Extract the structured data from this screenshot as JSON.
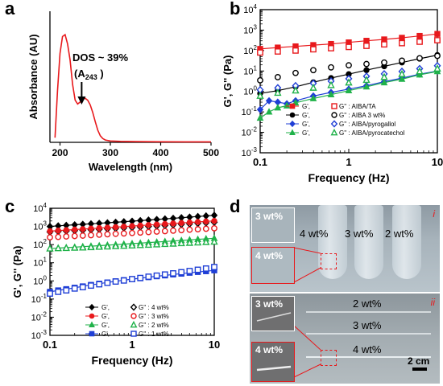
{
  "panel_labels": {
    "a": "a",
    "b": "b",
    "c": "c",
    "d": "d"
  },
  "panel_a": {
    "chart_data": {
      "type": "line",
      "xlabel": "Wavelength (nm)",
      "ylabel": "Absorbance (AU)",
      "xlim": [
        180,
        500
      ],
      "xticks": [
        200,
        300,
        400,
        500
      ],
      "x": [
        190,
        195,
        200,
        205,
        210,
        215,
        220,
        225,
        230,
        235,
        240,
        245,
        250,
        255,
        260,
        265,
        270,
        275,
        280,
        285,
        290,
        300,
        320,
        350,
        400,
        450,
        500
      ],
      "y": [
        0.05,
        0.55,
        0.95,
        1.13,
        1.15,
        1.05,
        0.88,
        0.62,
        0.45,
        0.41,
        0.43,
        0.46,
        0.47,
        0.45,
        0.4,
        0.32,
        0.22,
        0.13,
        0.07,
        0.04,
        0.025,
        0.015,
        0.01,
        0.008,
        0.006,
        0.005,
        0.005
      ],
      "color": "#e8191c",
      "annotation": {
        "line1": "DOS ~ 39%",
        "line2_pre": "(A",
        "line2_sub": "243",
        "line2_post": " )",
        "arrow_x": 243
      }
    }
  },
  "panel_b": {
    "chart_data": {
      "type": "scatter",
      "scale": "log-log",
      "xlabel": "Frequency (Hz)",
      "ylabel": "G', G'' (Pa)",
      "xlim": [
        0.1,
        10
      ],
      "ylim": [
        0.001,
        10000
      ],
      "xticks": [
        {
          "v": 0.1,
          "t": "0.1"
        },
        {
          "v": 1,
          "t": "1"
        },
        {
          "v": 10,
          "t": "10"
        }
      ],
      "yticks": [
        {
          "v": 0.001,
          "m": "10",
          "e": "-3"
        },
        {
          "v": 0.01,
          "m": "10",
          "e": "-2"
        },
        {
          "v": 0.1,
          "m": "10",
          "e": "-1"
        },
        {
          "v": 1,
          "m": "10",
          "e": "0"
        },
        {
          "v": 10,
          "m": "10",
          "e": "1"
        },
        {
          "v": 100,
          "m": "10",
          "e": "2"
        },
        {
          "v": 1000,
          "m": "10",
          "e": "3"
        },
        {
          "v": 10000,
          "m": "10",
          "e": "4"
        }
      ],
      "legend_pos": "lower-left",
      "legend": [
        {
          "g1": "G',",
          "g2": "G'' : AIBA/TA",
          "color": "#e8191c",
          "marker": "square"
        },
        {
          "g1": "G',",
          "g2": "G'' : AIBA 3 wt%",
          "color": "#000000",
          "marker": "circle"
        },
        {
          "g1": "G',",
          "g2": "G'' : AIBA/pyrogallol",
          "color": "#1f3fd6",
          "marker": "diamond"
        },
        {
          "g1": "G',",
          "g2": "G'' : AIBA/pyrocatechol",
          "color": "#20b24a",
          "marker": "triangle"
        }
      ],
      "series": [
        {
          "color": "#e8191c",
          "marker": "square",
          "filled": true,
          "x": [
            0.1,
            0.158,
            0.251,
            0.398,
            0.631,
            1,
            1.585,
            2.512,
            3.981,
            6.31,
            10
          ],
          "y": [
            120,
            140,
            160,
            185,
            210,
            250,
            300,
            350,
            420,
            520,
            650
          ]
        },
        {
          "color": "#e8191c",
          "marker": "square",
          "filled": false,
          "x": [
            0.1,
            0.158,
            0.251,
            0.398,
            0.631,
            1,
            1.585,
            2.512,
            3.981,
            6.31,
            10
          ],
          "y": [
            80,
            90,
            100,
            115,
            130,
            150,
            170,
            200,
            230,
            270,
            320
          ]
        },
        {
          "color": "#000000",
          "marker": "circle",
          "filled": true,
          "x": [
            0.1,
            0.158,
            0.251,
            0.398,
            0.631,
            1,
            1.585,
            2.512,
            3.981,
            6.31,
            10
          ],
          "y": [
            0.8,
            1.1,
            1.7,
            2.8,
            4.5,
            7,
            11,
            17,
            26,
            40,
            60
          ]
        },
        {
          "color": "#000000",
          "marker": "circle",
          "filled": false,
          "x": [
            0.1,
            0.158,
            0.251,
            0.398,
            0.631,
            1,
            1.585,
            2.512,
            3.981,
            6.31,
            10
          ],
          "y": [
            3.5,
            5,
            8,
            11,
            15,
            19,
            22,
            26,
            32,
            42,
            55
          ]
        },
        {
          "color": "#1f3fd6",
          "marker": "diamond",
          "filled": true,
          "x": [
            0.1,
            0.126,
            0.158,
            0.2,
            0.251,
            0.398,
            0.631,
            1,
            1.585,
            2.512,
            3.981,
            6.31,
            10
          ],
          "y": [
            0.13,
            0.35,
            0.3,
            0.25,
            0.35,
            0.6,
            0.9,
            1.3,
            1.9,
            3,
            4.5,
            7,
            10
          ]
        },
        {
          "color": "#1f3fd6",
          "marker": "diamond",
          "filled": false,
          "x": [
            0.1,
            0.158,
            0.251,
            0.398,
            0.631,
            1,
            1.585,
            2.512,
            3.981,
            6.31,
            10
          ],
          "y": [
            1.2,
            1.5,
            1.9,
            2.5,
            3.2,
            4.2,
            5.5,
            7.2,
            9.5,
            13,
            18
          ]
        },
        {
          "color": "#20b24a",
          "marker": "triangle",
          "filled": true,
          "x": [
            0.1,
            0.126,
            0.158,
            0.2,
            0.251,
            0.398,
            0.631,
            1,
            1.585,
            2.512,
            3.981,
            6.31,
            10
          ],
          "y": [
            0.05,
            0.1,
            0.16,
            0.2,
            0.28,
            0.45,
            0.7,
            1.1,
            1.7,
            2.7,
            4,
            6.5,
            9.5
          ]
        },
        {
          "color": "#20b24a",
          "marker": "triangle",
          "filled": false,
          "x": [
            0.1,
            0.158,
            0.251,
            0.398,
            0.631,
            1,
            1.585,
            2.512,
            3.981,
            6.31,
            10
          ],
          "y": [
            0.6,
            0.85,
            1.1,
            1.5,
            2,
            2.7,
            3.6,
            5,
            7,
            9.5,
            13
          ]
        }
      ]
    }
  },
  "panel_c": {
    "chart_data": {
      "type": "scatter",
      "scale": "log-log",
      "xlabel": "Frequency (Hz)",
      "ylabel": "G', G'' (Pa)",
      "xlim": [
        0.1,
        10
      ],
      "ylim": [
        0.001,
        10000
      ],
      "xticks": [
        {
          "v": 0.1,
          "t": "0.1"
        },
        {
          "v": 1,
          "t": "1"
        },
        {
          "v": 10,
          "t": "10"
        }
      ],
      "yticks": [
        {
          "v": 0.001,
          "m": "10",
          "e": "-3"
        },
        {
          "v": 0.01,
          "m": "10",
          "e": "-2"
        },
        {
          "v": 0.1,
          "m": "10",
          "e": "-1"
        },
        {
          "v": 1,
          "m": "10",
          "e": "0"
        },
        {
          "v": 10,
          "m": "10",
          "e": "1"
        },
        {
          "v": 100,
          "m": "10",
          "e": "2"
        },
        {
          "v": 1000,
          "m": "10",
          "e": "3"
        },
        {
          "v": 10000,
          "m": "10",
          "e": "4"
        }
      ],
      "legend_pos": "lower-right",
      "legend": [
        {
          "g1": "G',",
          "g2": "G'' : 4 wt%",
          "color": "#000000",
          "marker": "diamond"
        },
        {
          "g1": "G',",
          "g2": "G'' : 3 wt%",
          "color": "#e8191c",
          "marker": "circle"
        },
        {
          "g1": "G',",
          "g2": "G'' : 2 wt%",
          "color": "#20b24a",
          "marker": "triangle"
        },
        {
          "g1": "G',",
          "g2": "G'' : 1 wt%",
          "color": "#1f3fd6",
          "marker": "square"
        }
      ],
      "series": [
        {
          "color": "#000000",
          "marker": "diamond",
          "filled": true,
          "x": [
            0.1,
            0.126,
            0.158,
            0.2,
            0.251,
            0.316,
            0.398,
            0.501,
            0.631,
            0.794,
            1,
            1.259,
            1.585,
            1.995,
            2.512,
            3.162,
            3.981,
            5.012,
            6.31,
            7.943,
            10
          ],
          "y": [
            1000,
            1080,
            1150,
            1230,
            1310,
            1400,
            1490,
            1590,
            1700,
            1820,
            1950,
            2100,
            2250,
            2420,
            2600,
            2800,
            3020,
            3260,
            3520,
            3800,
            4100
          ]
        },
        {
          "color": "#000000",
          "marker": "diamond",
          "filled": false,
          "x": [
            0.1,
            0.126,
            0.158,
            0.2,
            0.251,
            0.316,
            0.398,
            0.501,
            0.631,
            0.794,
            1,
            1.259,
            1.585,
            1.995,
            2.512,
            3.162,
            3.981,
            5.012,
            6.31,
            7.943,
            10
          ],
          "y": [
            500,
            530,
            560,
            590,
            620,
            660,
            700,
            740,
            790,
            840,
            890,
            950,
            1010,
            1080,
            1150,
            1230,
            1310,
            1400,
            1500,
            1600,
            1720
          ]
        },
        {
          "color": "#e8191c",
          "marker": "circle",
          "filled": true,
          "x": [
            0.1,
            0.126,
            0.158,
            0.2,
            0.251,
            0.316,
            0.398,
            0.501,
            0.631,
            0.794,
            1,
            1.259,
            1.585,
            1.995,
            2.512,
            3.162,
            3.981,
            5.012,
            6.31,
            7.943,
            10
          ],
          "y": [
            550,
            590,
            630,
            670,
            710,
            760,
            810,
            860,
            920,
            980,
            1050,
            1120,
            1200,
            1280,
            1370,
            1460,
            1560,
            1660,
            1770,
            1890,
            2020
          ]
        },
        {
          "color": "#e8191c",
          "marker": "circle",
          "filled": false,
          "x": [
            0.1,
            0.126,
            0.158,
            0.2,
            0.251,
            0.316,
            0.398,
            0.501,
            0.631,
            0.794,
            1,
            1.259,
            1.585,
            1.995,
            2.512,
            3.162,
            3.981,
            5.012,
            6.31,
            7.943,
            10
          ],
          "y": [
            250,
            265,
            280,
            295,
            310,
            330,
            350,
            370,
            390,
            410,
            435,
            460,
            490,
            520,
            550,
            585,
            620,
            660,
            700,
            745,
            790
          ]
        },
        {
          "color": "#20b24a",
          "marker": "triangle",
          "filled": true,
          "x": [
            0.1,
            0.126,
            0.158,
            0.2,
            0.251,
            0.316,
            0.398,
            0.501,
            0.631,
            0.794,
            1,
            1.259,
            1.585,
            1.995,
            2.512,
            3.162,
            3.981,
            5.012,
            6.31,
            7.943,
            10
          ],
          "y": [
            60,
            64,
            68,
            72,
            77,
            82,
            87,
            93,
            99,
            106,
            113,
            121,
            129,
            138,
            148,
            158,
            169,
            181,
            194,
            208,
            222
          ]
        },
        {
          "color": "#20b24a",
          "marker": "triangle",
          "filled": false,
          "x": [
            0.1,
            0.126,
            0.158,
            0.2,
            0.251,
            0.316,
            0.398,
            0.501,
            0.631,
            0.794,
            1,
            1.259,
            1.585,
            1.995,
            2.512,
            3.162,
            3.981,
            5.012,
            6.31,
            7.943,
            10
          ],
          "y": [
            60,
            62,
            64,
            66,
            68,
            71,
            74,
            77,
            80,
            84,
            88,
            92,
            96,
            101,
            106,
            111,
            117,
            123,
            129,
            136,
            143
          ]
        },
        {
          "color": "#1f3fd6",
          "marker": "square",
          "filled": true,
          "x": [
            0.1,
            0.126,
            0.158,
            0.2,
            0.251,
            0.316,
            0.398,
            0.501,
            0.631,
            0.794,
            1,
            1.259,
            1.585,
            1.995,
            2.512,
            3.162,
            3.981,
            5.012,
            6.31,
            7.943,
            10
          ],
          "y": [
            0.25,
            0.3,
            0.35,
            0.42,
            0.5,
            0.6,
            0.7,
            0.82,
            0.95,
            1.1,
            1.25,
            1.4,
            1.6,
            1.8,
            2.0,
            2.25,
            2.5,
            2.8,
            3.1,
            3.4,
            3.8
          ]
        },
        {
          "color": "#1f3fd6",
          "marker": "square",
          "filled": false,
          "x": [
            0.1,
            0.126,
            0.158,
            0.2,
            0.251,
            0.316,
            0.398,
            0.501,
            0.631,
            0.794,
            1,
            1.259,
            1.585,
            1.995,
            2.512,
            3.162,
            3.981,
            5.012,
            6.31,
            7.943,
            10
          ],
          "y": [
            0.2,
            0.25,
            0.3,
            0.38,
            0.45,
            0.55,
            0.65,
            0.78,
            0.92,
            1.05,
            1.25,
            1.45,
            1.7,
            1.95,
            2.25,
            2.6,
            3.0,
            3.5,
            4.1,
            4.8,
            5.8
          ]
        }
      ]
    }
  },
  "panel_d": {
    "photo_i": {
      "marker": "i",
      "labels": [
        "4 wt%",
        "3 wt%",
        "2 wt%"
      ],
      "inset_top": "3 wt%",
      "inset_bottom": "4 wt%"
    },
    "photo_ii": {
      "marker": "ii",
      "labels": [
        "2 wt%",
        "3 wt%",
        "4 wt%"
      ],
      "inset_top": "3 wt%",
      "inset_bottom": "4 wt%",
      "scale_bar": "2 cm"
    }
  }
}
